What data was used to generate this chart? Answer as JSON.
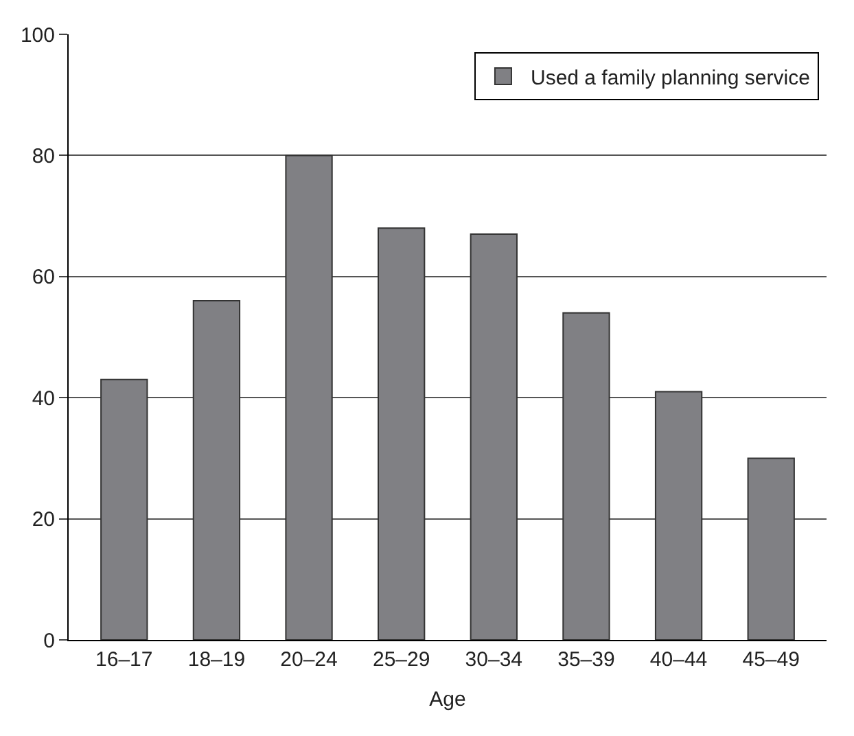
{
  "chart_data": {
    "type": "bar",
    "xlabel": "Age",
    "categories": [
      "16–17",
      "18–19",
      "20–24",
      "25–29",
      "30–34",
      "35–39",
      "40–44",
      "45–49"
    ],
    "series": [
      {
        "name": "Used a family planning service",
        "color": "#808084",
        "values": [
          43,
          56,
          80,
          68,
          67,
          54,
          41,
          30
        ]
      }
    ],
    "ylim": [
      0,
      100
    ],
    "yticks": [
      0,
      20,
      40,
      60,
      80,
      100
    ],
    "grid": "y",
    "legend": "top right"
  }
}
